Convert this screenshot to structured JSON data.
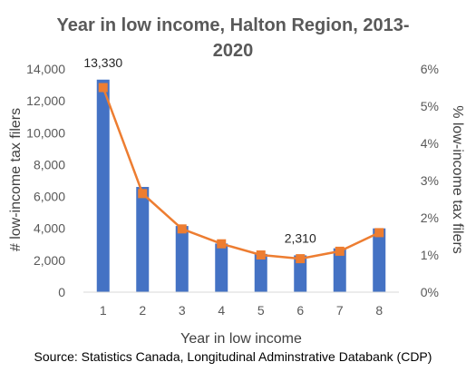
{
  "chart_data": {
    "type": "bar",
    "title_line1": "Year in low income, Halton Region, 2013-",
    "title_line2": "2020",
    "xlabel": "Year in low income",
    "ylabel": "# low-income tax filers",
    "y2label": "% low-income tax filers",
    "categories": [
      "1",
      "2",
      "3",
      "4",
      "5",
      "6",
      "7",
      "8"
    ],
    "ylim": [
      0,
      14000
    ],
    "y_ticks": [
      "0",
      "2,000",
      "4,000",
      "6,000",
      "8,000",
      "10,000",
      "12,000",
      "14,000"
    ],
    "y2lim": [
      0,
      6
    ],
    "y2_ticks": [
      "0%",
      "1%",
      "2%",
      "3%",
      "4%",
      "5%",
      "6%"
    ],
    "grid": false,
    "legend": "none",
    "series": [
      {
        "type": "bar",
        "axis": "left",
        "color": "#4472C4",
        "values": [
          13330,
          6600,
          4150,
          3050,
          2400,
          2310,
          2750,
          4000
        ]
      },
      {
        "type": "line",
        "axis": "right",
        "color": "#ED7D31",
        "values": [
          5.5,
          2.65,
          1.7,
          1.3,
          1.0,
          0.9,
          1.1,
          1.6
        ]
      }
    ],
    "data_labels": [
      {
        "series": 0,
        "index": 0,
        "text": "13,330"
      },
      {
        "series": 0,
        "index": 5,
        "text": "2,310"
      }
    ],
    "source": "Source: Statistics Canada, Longitudinal Adminstrative Databank (CDP)"
  }
}
